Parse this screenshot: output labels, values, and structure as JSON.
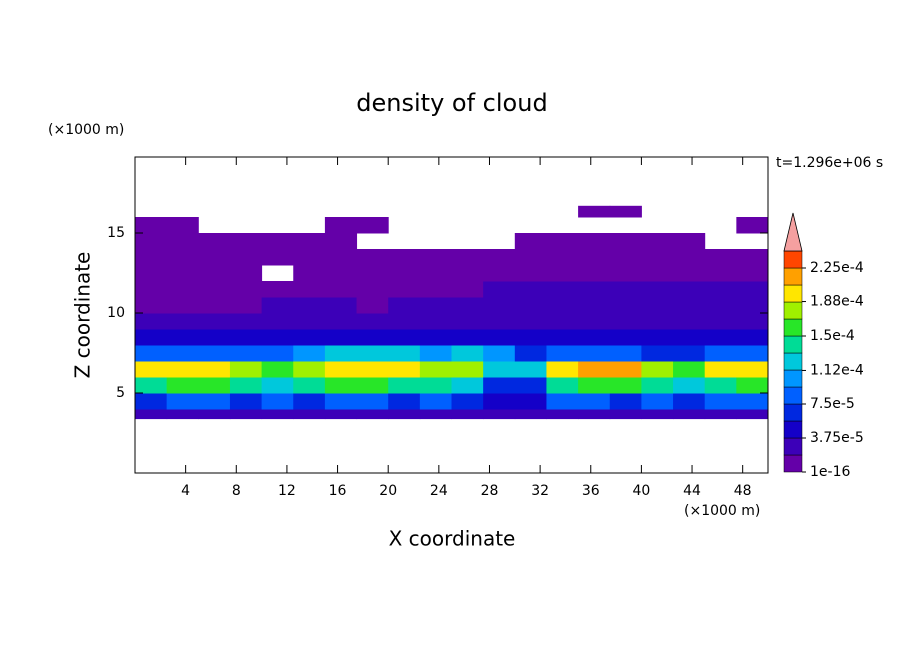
{
  "chart_data": {
    "type": "contourf",
    "title": "density of cloud",
    "time_label": "t=1.296e+06 s",
    "x_label": "X coordinate",
    "y_label": "Z coordinate",
    "x_unit": "(×1000 m)",
    "y_unit": "(×1000 m)",
    "xlim": [
      0,
      50
    ],
    "ylim": [
      0,
      19.75
    ],
    "xticks": [
      4,
      8,
      12,
      16,
      20,
      24,
      28,
      32,
      36,
      40,
      44,
      48
    ],
    "yticks": [
      5,
      10,
      15
    ],
    "x_edges": [
      0,
      2.5,
      5,
      7.5,
      10,
      12.5,
      15,
      17.5,
      20,
      22.5,
      25,
      27.5,
      30,
      32.5,
      35,
      37.5,
      40,
      42.5,
      45,
      47.5,
      50
    ],
    "z_edges": [
      3.4,
      4,
      5,
      6,
      7,
      8,
      9,
      10,
      11,
      12,
      13,
      14,
      15,
      16,
      16.7
    ],
    "values": [
      [
        3e-05,
        3e-05,
        3e-05,
        3e-05,
        3e-05,
        3e-05,
        3e-05,
        3e-05,
        3e-05,
        3e-05,
        3e-05,
        3e-05,
        3e-05,
        3e-05,
        3e-05,
        3e-05,
        3e-05,
        3e-05,
        3e-05,
        3e-05
      ],
      [
        7e-05,
        7.5e-05,
        8e-05,
        7e-05,
        7.5e-05,
        7e-05,
        8e-05,
        7.5e-05,
        7e-05,
        7.5e-05,
        7e-05,
        4e-05,
        4e-05,
        7.5e-05,
        8e-05,
        7e-05,
        7.5e-05,
        7e-05,
        8e-05,
        7.5e-05
      ],
      [
        0.00014,
        0.00015,
        0.00015,
        0.00014,
        0.00013,
        0.00014,
        0.00015,
        0.00015,
        0.00014,
        0.00014,
        0.00013,
        6e-05,
        7e-05,
        0.00014,
        0.00015,
        0.00015,
        0.00014,
        0.00013,
        0.00014,
        0.00015
      ],
      [
        0.00019,
        0.0002,
        0.0002,
        0.00018,
        0.00016,
        0.00017,
        0.00019,
        0.0002,
        0.0002,
        0.00018,
        0.00017,
        0.00012,
        0.00013,
        0.00019,
        0.00021,
        0.00021,
        0.00018,
        0.00016,
        0.00019,
        0.00019
      ],
      [
        9e-05,
        9e-05,
        8e-05,
        8e-05,
        9e-05,
        0.00011,
        0.00012,
        0.000125,
        0.00012,
        0.00011,
        0.00012,
        0.0001,
        6e-05,
        8e-05,
        9e-05,
        8e-05,
        6e-05,
        7e-05,
        8e-05,
        8e-05
      ],
      [
        4e-05,
        4e-05,
        4e-05,
        4.5e-05,
        5e-05,
        5e-05,
        5.5e-05,
        5e-05,
        4.5e-05,
        4e-05,
        4e-05,
        4e-05,
        4e-05,
        4e-05,
        4e-05,
        4e-05,
        4e-05,
        4.5e-05,
        4e-05,
        4e-05
      ],
      [
        2.5e-05,
        2.5e-05,
        2.5e-05,
        3e-05,
        3e-05,
        3e-05,
        2.5e-05,
        2.5e-05,
        3e-05,
        3e-05,
        3e-05,
        3.5e-05,
        3.5e-05,
        3e-05,
        3e-05,
        3e-05,
        3.5e-05,
        3.5e-05,
        3e-05,
        3e-05
      ],
      [
        1.5e-05,
        1.5e-05,
        1.5e-05,
        1.5e-05,
        2e-05,
        2e-05,
        2e-05,
        1.5e-05,
        2e-05,
        2e-05,
        2.5e-05,
        3e-05,
        3e-05,
        3e-05,
        3e-05,
        3e-05,
        2.5e-05,
        3e-05,
        3e-05,
        2.5e-05
      ],
      [
        1e-05,
        1e-05,
        1e-05,
        1e-05,
        1e-05,
        1e-05,
        1e-05,
        1e-05,
        1e-05,
        1e-05,
        1e-05,
        2e-05,
        2.5e-05,
        2.5e-05,
        2.5e-05,
        2.5e-05,
        2e-05,
        2e-05,
        2.5e-05,
        2e-05
      ],
      [
        1e-05,
        1e-05,
        1e-05,
        1e-05,
        null,
        1e-05,
        1e-05,
        1e-05,
        1e-05,
        1e-05,
        1e-05,
        1e-05,
        1e-05,
        1e-05,
        1e-05,
        1e-05,
        1e-05,
        1e-05,
        1e-05,
        1e-05
      ],
      [
        5e-06,
        5e-06,
        5e-06,
        5e-06,
        5e-06,
        5e-06,
        5e-06,
        5e-06,
        5e-06,
        5e-06,
        5e-06,
        5e-06,
        5e-06,
        5e-06,
        5e-06,
        5e-06,
        5e-06,
        5e-06,
        5e-06,
        5e-06
      ],
      [
        5e-06,
        5e-06,
        5e-06,
        5e-06,
        5e-06,
        5e-06,
        5e-06,
        null,
        null,
        null,
        null,
        null,
        5e-06,
        5e-06,
        5e-06,
        5e-06,
        5e-06,
        5e-06,
        null,
        null
      ],
      [
        5e-06,
        5e-06,
        null,
        null,
        null,
        null,
        5e-06,
        5e-06,
        null,
        null,
        null,
        null,
        null,
        null,
        null,
        null,
        null,
        null,
        null,
        5e-06
      ],
      [
        null,
        null,
        null,
        null,
        null,
        null,
        null,
        null,
        null,
        null,
        null,
        null,
        null,
        null,
        5e-06,
        5e-06,
        null,
        null,
        null,
        null
      ]
    ],
    "colorbar": {
      "ticks": [
        {
          "value": 1e-16,
          "label": "1e-16"
        },
        {
          "value": 3.75e-05,
          "label": "3.75e-5"
        },
        {
          "value": 7.5e-05,
          "label": "7.5e-5"
        },
        {
          "value": 0.000112,
          "label": "1.12e-4"
        },
        {
          "value": 0.00015,
          "label": "1.5e-4"
        },
        {
          "value": 0.000188,
          "label": "1.88e-4"
        },
        {
          "value": 0.000225,
          "label": "2.25e-4"
        }
      ],
      "colors": [
        "#6400a8",
        "#3c00b8",
        "#1400c8",
        "#0028e0",
        "#0060ff",
        "#0096ff",
        "#00c8dc",
        "#00dc96",
        "#28e628",
        "#a0f000",
        "#ffe600",
        "#ffa000",
        "#ff4600",
        "#f5a0a0"
      ]
    }
  }
}
